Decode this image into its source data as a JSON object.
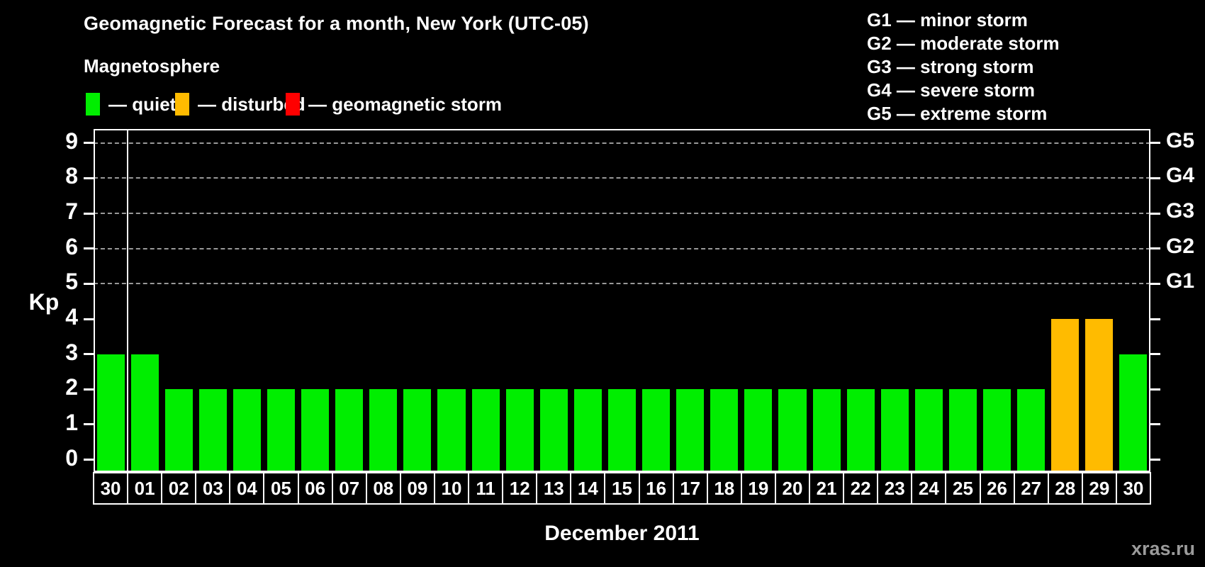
{
  "title": "Geomagnetic Forecast for a month, New York (UTC-05)",
  "legend": {
    "heading": "Magnetosphere",
    "items": [
      {
        "key": "quiet",
        "label": "— quiet",
        "color": "#00EE00"
      },
      {
        "key": "disturbed",
        "label": "— disturbed",
        "color": "#FFBB00"
      },
      {
        "key": "storm",
        "label": "— geomagnetic storm",
        "color": "#FF0000"
      }
    ]
  },
  "g_scale_legend": [
    "G1 — minor storm",
    "G2 — moderate storm",
    "G3 — strong storm",
    "G4 — severe storm",
    "G5 — extreme storm"
  ],
  "watermark": "xras.ru",
  "chart_data": {
    "type": "bar",
    "title": "Geomagnetic Forecast for a month, New York (UTC-05)",
    "xlabel": "December 2011",
    "ylabel": "Kp",
    "ylim": [
      0,
      9
    ],
    "y_ticks": [
      0,
      1,
      2,
      3,
      4,
      5,
      6,
      7,
      8,
      9
    ],
    "gridlines_at": [
      5,
      6,
      7,
      8,
      9
    ],
    "grid_style": "horizontal dashed lines only at Kp 5–9 (G-storm levels)",
    "legend_position": "top-left",
    "categories": [
      "30",
      "01",
      "02",
      "03",
      "04",
      "05",
      "06",
      "07",
      "08",
      "09",
      "10",
      "11",
      "12",
      "13",
      "14",
      "15",
      "16",
      "17",
      "18",
      "19",
      "20",
      "21",
      "22",
      "23",
      "24",
      "25",
      "26",
      "27",
      "28",
      "29",
      "30"
    ],
    "values": [
      3,
      3,
      2,
      2,
      2,
      2,
      2,
      2,
      2,
      2,
      2,
      2,
      2,
      2,
      2,
      2,
      2,
      2,
      2,
      2,
      2,
      2,
      2,
      2,
      2,
      2,
      2,
      2,
      4,
      4,
      3
    ],
    "statuses": [
      "quiet",
      "quiet",
      "quiet",
      "quiet",
      "quiet",
      "quiet",
      "quiet",
      "quiet",
      "quiet",
      "quiet",
      "quiet",
      "quiet",
      "quiet",
      "quiet",
      "quiet",
      "quiet",
      "quiet",
      "quiet",
      "quiet",
      "quiet",
      "quiet",
      "quiet",
      "quiet",
      "quiet",
      "quiet",
      "quiet",
      "quiet",
      "quiet",
      "disturbed",
      "disturbed",
      "quiet"
    ],
    "bar_colors": {
      "quiet": "#00EE00",
      "disturbed": "#FFBB00",
      "storm": "#FF0000"
    },
    "right_axis": [
      {
        "label": "G1",
        "kp": 5
      },
      {
        "label": "G2",
        "kp": 6
      },
      {
        "label": "G3",
        "kp": 7
      },
      {
        "label": "G4",
        "kp": 8
      },
      {
        "label": "G5",
        "kp": 9
      }
    ],
    "month_separator_after_index": 0
  }
}
